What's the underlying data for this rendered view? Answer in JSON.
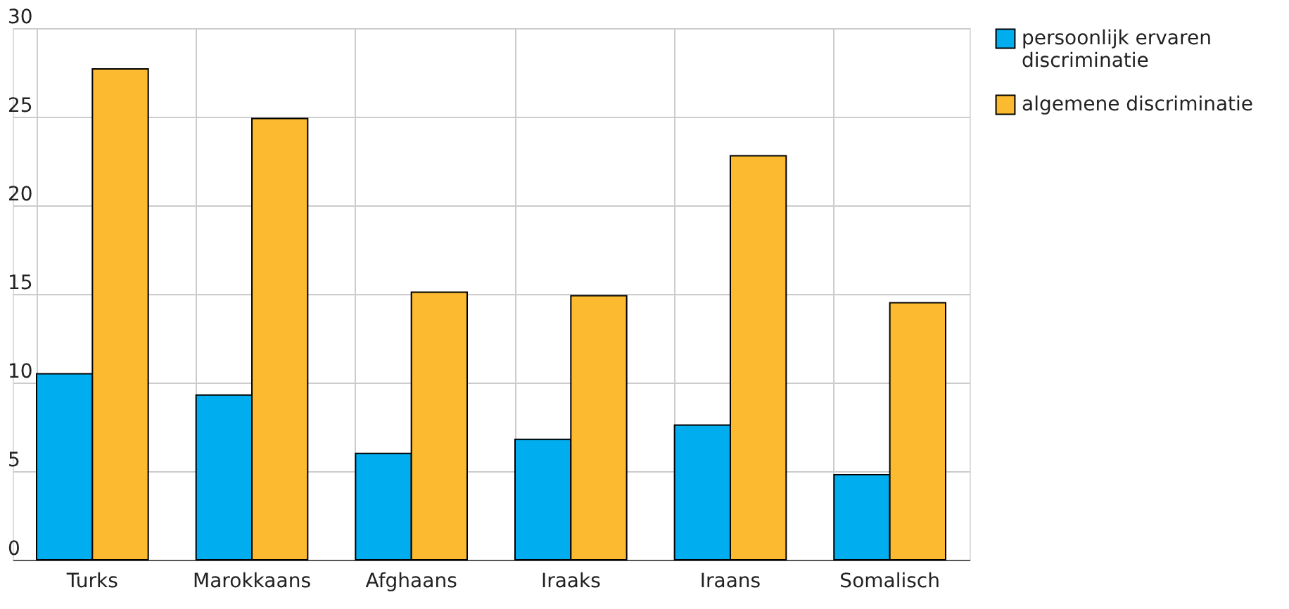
{
  "chart_data": {
    "type": "bar",
    "categories": [
      "Turks",
      "Marokkaans",
      "Afghaans",
      "Iraaks",
      "Iraans",
      "Somalisch"
    ],
    "series": [
      {
        "name": "persoonlijk ervaren discriminatie",
        "color": "#00aeef",
        "values": [
          10.5,
          9.3,
          6.0,
          6.8,
          7.6,
          4.8
        ]
      },
      {
        "name": "algemene discriminatie",
        "color": "#fbba2f",
        "values": [
          27.7,
          24.9,
          15.1,
          14.9,
          22.8,
          14.5
        ]
      }
    ],
    "ylim": [
      0,
      30
    ],
    "yticks": [
      0,
      5,
      10,
      15,
      20,
      25,
      30
    ],
    "grid": true,
    "legend": "top right"
  }
}
